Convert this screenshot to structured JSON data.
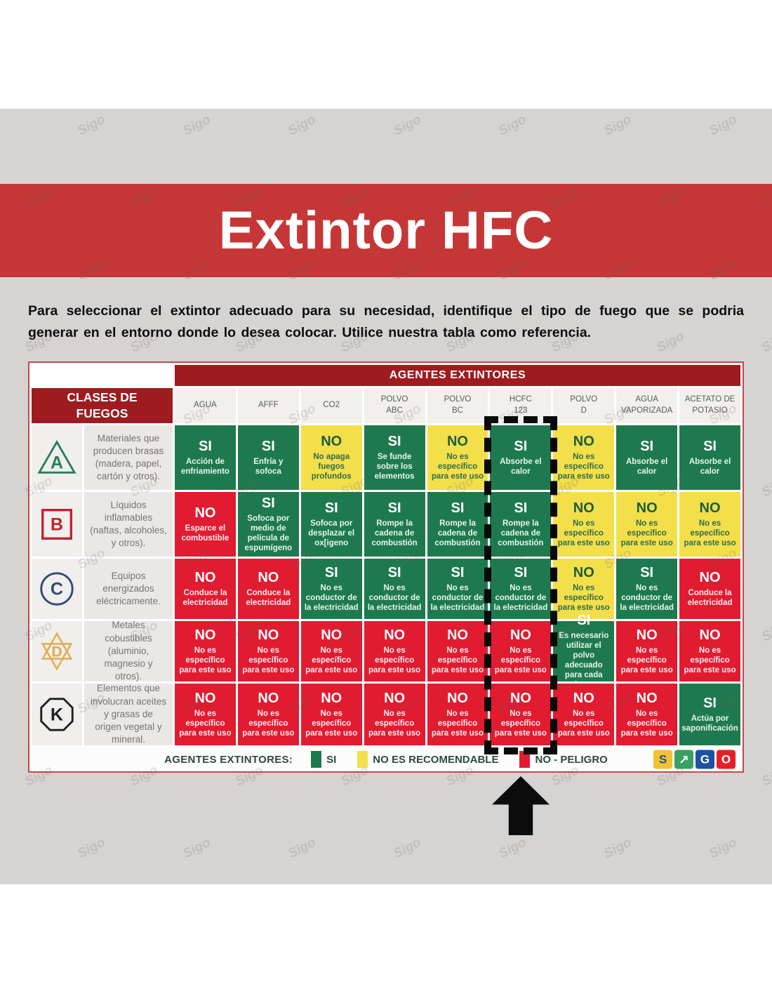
{
  "page": {
    "watermark": "Sigo",
    "banner_title": "Extintor HFC",
    "intro": "Para seleccionar el extintor adecuado para su necesidad, identifique el tipo de fuego que se podria generar en el entorno donde lo desea colocar. Utilice nuestra tabla como referencia."
  },
  "colors": {
    "banner_red": "#c53737",
    "header_red": "#9e1b1f",
    "green": "#1e7a4e",
    "yellow": "#f3df4a",
    "red": "#e11b30"
  },
  "table": {
    "agents_header": "AGENTES EXTINTORES",
    "classes_header": "CLASES DE FUEGOS",
    "highlighted_column": "HCFC 123",
    "columns": [
      "AGUA",
      "AFFF",
      "CO2",
      "POLVO\nABC",
      "POLVO\nBC",
      "HCFC\n123",
      "POLVO\nD",
      "AGUA\nVAPORIZADA",
      "ACETATO DE\nPOTASIO"
    ],
    "rows": [
      {
        "class": "A",
        "shape": "triangle",
        "color": "#2a7d5f",
        "description": "Materiales que producen brasas (madera, papel, cartón y otros).",
        "cells": [
          {
            "value": "SI",
            "status": "green",
            "note": "Acción de enfriamiento"
          },
          {
            "value": "SI",
            "status": "green",
            "note": "Enfría y sofoca"
          },
          {
            "value": "NO",
            "status": "yellow",
            "note": "No apaga fuegos profundos"
          },
          {
            "value": "SI",
            "status": "green",
            "note": "Se funde sobre los elementos"
          },
          {
            "value": "NO",
            "status": "yellow",
            "note": "No es específico para este uso"
          },
          {
            "value": "SI",
            "status": "green",
            "note": "Absorbe el calor"
          },
          {
            "value": "NO",
            "status": "yellow",
            "note": "No es específico para este uso"
          },
          {
            "value": "SI",
            "status": "green",
            "note": "Absorbe el calor"
          },
          {
            "value": "SI",
            "status": "green",
            "note": "Absorbe el calor"
          }
        ]
      },
      {
        "class": "B",
        "shape": "square",
        "color": "#c0232c",
        "description": "Líquidos inflamables (naftas, alcoholes, y otros).",
        "cells": [
          {
            "value": "NO",
            "status": "red",
            "note": "Esparce el combustible"
          },
          {
            "value": "SI",
            "status": "green",
            "note": "Sofoca por medio de película de espumígeno"
          },
          {
            "value": "SI",
            "status": "green",
            "note": "Sofoca por desplazar el ox[igeno"
          },
          {
            "value": "SI",
            "status": "green",
            "note": "Rompe la cadena de combustión"
          },
          {
            "value": "SI",
            "status": "green",
            "note": "Rompe la cadena de combustión"
          },
          {
            "value": "SI",
            "status": "green",
            "note": "Rompe la cadena de combustión"
          },
          {
            "value": "NO",
            "status": "yellow",
            "note": "No es específico para este uso"
          },
          {
            "value": "NO",
            "status": "yellow",
            "note": "No es específico para este uso"
          },
          {
            "value": "NO",
            "status": "yellow",
            "note": "No es específico para este uso"
          }
        ]
      },
      {
        "class": "C",
        "shape": "circle",
        "color": "#2f4d70",
        "description": "Equipos energizados eléctricamente.",
        "cells": [
          {
            "value": "NO",
            "status": "red",
            "note": "Conduce la electricidad"
          },
          {
            "value": "NO",
            "status": "red",
            "note": "Conduce la electricidad"
          },
          {
            "value": "SI",
            "status": "green",
            "note": "No es conductor de la electricidad"
          },
          {
            "value": "SI",
            "status": "green",
            "note": "No es conductor de la electricidad"
          },
          {
            "value": "SI",
            "status": "green",
            "note": "No es conductor de la electricidad"
          },
          {
            "value": "SI",
            "status": "green",
            "note": "No es conductor de la electricidad"
          },
          {
            "value": "NO",
            "status": "yellow",
            "note": "No es específico para este uso"
          },
          {
            "value": "SI",
            "status": "green",
            "note": "No es conductor de la electricidad"
          },
          {
            "value": "NO",
            "status": "red",
            "note": "Conduce la electricidad"
          }
        ]
      },
      {
        "class": "D",
        "shape": "star6",
        "color": "#e2ac4b",
        "description": "Metales cobustibles (aluminio, magnesio y otros).",
        "cells": [
          {
            "value": "NO",
            "status": "red",
            "note": "No es específico para este uso"
          },
          {
            "value": "NO",
            "status": "red",
            "note": "No es específico para este uso"
          },
          {
            "value": "NO",
            "status": "red",
            "note": "No es específico para este uso"
          },
          {
            "value": "NO",
            "status": "red",
            "note": "No es específico para este uso"
          },
          {
            "value": "NO",
            "status": "red",
            "note": "No es específico para este uso"
          },
          {
            "value": "NO",
            "status": "red",
            "note": "No es específico para este uso"
          },
          {
            "value": "SI",
            "status": "green",
            "note": "Es necesario utilizar el polvo adecuado para cada riesgo"
          },
          {
            "value": "NO",
            "status": "red",
            "note": "No es específico para este uso"
          },
          {
            "value": "NO",
            "status": "red",
            "note": "No es específico para este uso"
          }
        ]
      },
      {
        "class": "K",
        "shape": "octagon",
        "color": "#1f1f1f",
        "description": "Elementos que involucran aceites y grasas de origen vegetal y mineral.",
        "cells": [
          {
            "value": "NO",
            "status": "red",
            "note": "No es específico para este uso"
          },
          {
            "value": "NO",
            "status": "red",
            "note": "No es específico para este uso"
          },
          {
            "value": "NO",
            "status": "red",
            "note": "No es específico para este uso"
          },
          {
            "value": "NO",
            "status": "red",
            "note": "No es específico para este uso"
          },
          {
            "value": "NO",
            "status": "red",
            "note": "No es específico para este uso"
          },
          {
            "value": "NO",
            "status": "red",
            "note": "No es específico para este uso"
          },
          {
            "value": "NO",
            "status": "red",
            "note": "No es específico para este uso"
          },
          {
            "value": "NO",
            "status": "red",
            "note": "No es específico para este uso"
          },
          {
            "value": "SI",
            "status": "green",
            "note": "Actúa por saponificación"
          }
        ]
      }
    ],
    "legend": {
      "label": "AGENTES EXTINTORES:",
      "items": [
        {
          "label": "SI",
          "color": "#1e7a4e"
        },
        {
          "label": "NO ES RECOMENDABLE",
          "color": "#f3df4a"
        },
        {
          "label": "NO - PELIGRO",
          "color": "#e11b30"
        }
      ]
    },
    "logo": {
      "tiles": [
        {
          "char": "S",
          "bg": "#f2c230",
          "fg": "#1c52a3"
        },
        {
          "char": "↗",
          "bg": "#3aa061",
          "fg": "#ffffff"
        },
        {
          "char": "G",
          "bg": "#1c52a3",
          "fg": "#ffffff"
        },
        {
          "char": "O",
          "bg": "#e3202a",
          "fg": "#ffffff"
        }
      ]
    }
  }
}
